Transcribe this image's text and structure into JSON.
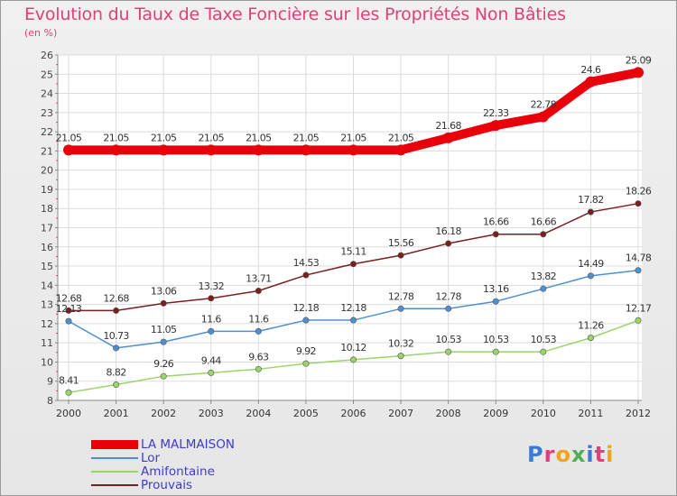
{
  "chart_data": {
    "type": "line",
    "title": "Evolution du Taux de Taxe Foncière sur les Propriétés Non Bâties",
    "unit": "(en %)",
    "x": [
      "2000",
      "2001",
      "2002",
      "2003",
      "2004",
      "2005",
      "2006",
      "2007",
      "2008",
      "2009",
      "2010",
      "2011",
      "2012"
    ],
    "ylim": [
      8,
      26
    ],
    "yticks": [
      8,
      9,
      10,
      11,
      12,
      13,
      14,
      15,
      16,
      17,
      18,
      19,
      20,
      21,
      22,
      23,
      24,
      25,
      26
    ],
    "grid": true,
    "legend_position": "bottom-left",
    "series": [
      {
        "name": "LA MALMAISON",
        "color": "#e8000b",
        "values": [
          21.05,
          21.05,
          21.05,
          21.05,
          21.05,
          21.05,
          21.05,
          21.05,
          21.68,
          22.33,
          22.78,
          24.6,
          25.09
        ]
      },
      {
        "name": "Lor",
        "color": "#4f8fcf",
        "values": [
          12.13,
          10.73,
          11.05,
          11.6,
          11.6,
          12.18,
          12.18,
          12.78,
          12.78,
          13.16,
          13.82,
          14.49,
          14.78
        ]
      },
      {
        "name": "Amifontaine",
        "color": "#9bd46a",
        "values": [
          8.41,
          8.82,
          9.26,
          9.44,
          9.63,
          9.92,
          10.12,
          10.32,
          10.53,
          10.53,
          10.53,
          11.26,
          12.17
        ]
      },
      {
        "name": "Prouvais",
        "color": "#7a1e1e",
        "values": [
          12.68,
          12.68,
          13.06,
          13.32,
          13.71,
          14.53,
          15.11,
          15.56,
          16.18,
          16.66,
          16.66,
          17.82,
          18.26
        ]
      }
    ],
    "data_labels": [
      [
        "21.05",
        "21.05",
        "21.05",
        "21.05",
        "21.05",
        "21.05",
        "21.05",
        "21.05",
        "21.68",
        "22.33",
        "22.78",
        "24.6",
        "25.09"
      ],
      [
        "12.13",
        "10.73",
        "11.05",
        "11.6",
        "11.6",
        "12.18",
        "12.18",
        "12.78",
        "12.78",
        "13.16",
        "13.82",
        "14.49",
        "14.78"
      ],
      [
        "8.41",
        "8.82",
        "9.26",
        "9.44",
        "9.63",
        "9.92",
        "10.12",
        "10.32",
        "10.53",
        "10.53",
        "10.53",
        "11.26",
        "12.17"
      ],
      [
        "12.68",
        "12.68",
        "13.06",
        "13.32",
        "13.71",
        "14.53",
        "15.11",
        "15.56",
        "16.18",
        "16.66",
        "16.66",
        "17.82",
        "18.26"
      ]
    ]
  },
  "logo": {
    "text": "Proxiti",
    "colors": [
      "#3a7bd5",
      "#e0407a",
      "#f2a31b",
      "#4caf50",
      "#3a7bd5",
      "#e0407a",
      "#f2a31b"
    ]
  }
}
